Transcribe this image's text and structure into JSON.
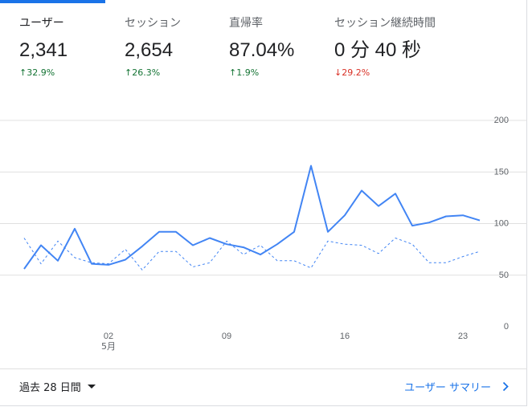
{
  "metrics": [
    {
      "label": "ユーザー",
      "value": "2,341",
      "change": "↑32.9%",
      "direction": "up",
      "active": true
    },
    {
      "label": "セッション",
      "value": "2,654",
      "change": "↑26.3%",
      "direction": "up",
      "active": false
    },
    {
      "label": "直帰率",
      "value": "87.04%",
      "change": "↑1.9%",
      "direction": "up",
      "active": false
    },
    {
      "label": "セッション継続時間",
      "value": "0 分 40 秒",
      "change": "↓29.2%",
      "direction": "down",
      "active": false
    }
  ],
  "colors": {
    "accent": "#1a73e8",
    "current_line": "#4285f4",
    "up": "#137333",
    "down": "#d93025",
    "grid": "#e0e0e0"
  },
  "chart_data": {
    "type": "line",
    "x_tick_labels": [
      {
        "index": 5,
        "label": "02",
        "sublabel": "5月"
      },
      {
        "index": 12,
        "label": "09",
        "sublabel": ""
      },
      {
        "index": 19,
        "label": "16",
        "sublabel": ""
      },
      {
        "index": 26,
        "label": "23",
        "sublabel": ""
      }
    ],
    "y_ticks": [
      0,
      50,
      100,
      150,
      200
    ],
    "ylim": [
      0,
      200
    ],
    "grid": true,
    "series": [
      {
        "style": "solid",
        "values": [
          56,
          79,
          64,
          95,
          61,
          60,
          65,
          78,
          92,
          92,
          79,
          86,
          80,
          77,
          70,
          80,
          92,
          156,
          92,
          108,
          132,
          117,
          129,
          98,
          101,
          107,
          108,
          103
        ]
      },
      {
        "style": "dashed",
        "values": [
          86,
          61,
          83,
          67,
          62,
          61,
          75,
          55,
          73,
          73,
          58,
          62,
          83,
          70,
          79,
          64,
          64,
          57,
          83,
          80,
          79,
          71,
          86,
          80,
          62,
          62,
          68,
          73
        ]
      }
    ]
  },
  "footer": {
    "range_label": "過去 28 日間",
    "report_link": "ユーザー サマリー"
  }
}
